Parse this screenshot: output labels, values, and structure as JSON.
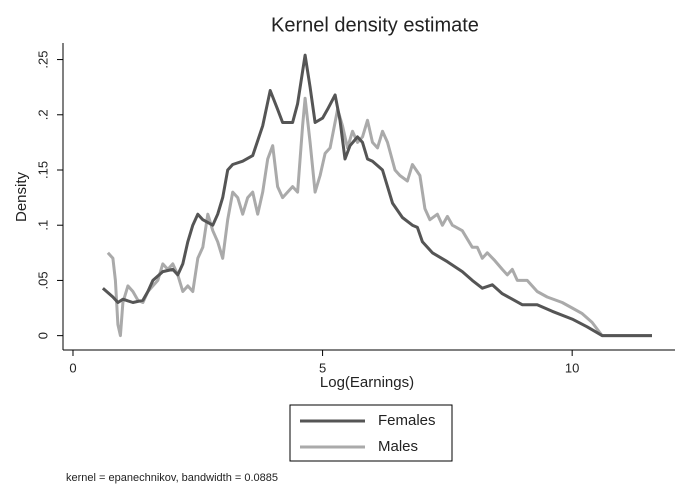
{
  "chart_data": {
    "type": "line",
    "title": "Kernel density estimate",
    "x_label": "Log(Earnings)",
    "y_label": "Density",
    "note": "kernel = epanechnikov, bandwidth = 0.0885",
    "xlim": [
      -0.2,
      12.06
    ],
    "ylim": [
      -0.013,
      0.265
    ],
    "xticks": [
      0,
      5,
      10
    ],
    "yticks": [
      {
        "value": 0,
        "label": "0"
      },
      {
        "value": 0.05,
        "label": ".05"
      },
      {
        "value": 0.1,
        "label": ".1"
      },
      {
        "value": 0.15,
        "label": ".15"
      },
      {
        "value": 0.2,
        "label": ".2"
      },
      {
        "value": 0.25,
        "label": ".25"
      }
    ],
    "grid": false,
    "legend": "bottom",
    "series": [
      {
        "name": "Females",
        "color": "#555555",
        "x": [
          0.6,
          0.8,
          0.9,
          1.0,
          1.2,
          1.4,
          1.5,
          1.6,
          1.8,
          2.0,
          2.1,
          2.2,
          2.3,
          2.4,
          2.5,
          2.6,
          2.8,
          2.9,
          3.0,
          3.1,
          3.2,
          3.4,
          3.6,
          3.8,
          3.95,
          4.1,
          4.2,
          4.4,
          4.5,
          4.65,
          4.75,
          4.85,
          5.0,
          5.1,
          5.25,
          5.35,
          5.45,
          5.55,
          5.7,
          5.8,
          5.9,
          6.0,
          6.2,
          6.4,
          6.6,
          6.8,
          6.9,
          7.0,
          7.2,
          7.5,
          7.8,
          8.0,
          8.2,
          8.4,
          8.6,
          8.8,
          9.0,
          9.3,
          9.6,
          10.0,
          10.3,
          10.6,
          11.0,
          11.6
        ],
        "values": [
          0.043,
          0.035,
          0.03,
          0.033,
          0.03,
          0.032,
          0.04,
          0.05,
          0.058,
          0.06,
          0.055,
          0.065,
          0.085,
          0.1,
          0.11,
          0.105,
          0.1,
          0.11,
          0.125,
          0.15,
          0.155,
          0.158,
          0.163,
          0.19,
          0.222,
          0.205,
          0.193,
          0.193,
          0.21,
          0.254,
          0.225,
          0.193,
          0.197,
          0.205,
          0.218,
          0.195,
          0.16,
          0.172,
          0.18,
          0.175,
          0.16,
          0.158,
          0.15,
          0.12,
          0.107,
          0.1,
          0.098,
          0.085,
          0.075,
          0.067,
          0.058,
          0.05,
          0.043,
          0.046,
          0.038,
          0.033,
          0.028,
          0.028,
          0.022,
          0.015,
          0.008,
          0.0,
          0.0,
          0.0
        ]
      },
      {
        "name": "Males",
        "color": "#aaaaaa",
        "x": [
          0.7,
          0.8,
          0.85,
          0.9,
          0.95,
          1.0,
          1.1,
          1.2,
          1.3,
          1.4,
          1.5,
          1.6,
          1.7,
          1.8,
          1.9,
          2.0,
          2.1,
          2.2,
          2.3,
          2.4,
          2.5,
          2.6,
          2.7,
          2.8,
          2.9,
          3.0,
          3.1,
          3.2,
          3.3,
          3.4,
          3.5,
          3.6,
          3.7,
          3.8,
          3.9,
          4.0,
          4.1,
          4.2,
          4.3,
          4.4,
          4.5,
          4.6,
          4.65,
          4.75,
          4.85,
          4.95,
          5.05,
          5.15,
          5.3,
          5.4,
          5.5,
          5.6,
          5.7,
          5.8,
          5.9,
          6.0,
          6.1,
          6.2,
          6.3,
          6.45,
          6.55,
          6.7,
          6.8,
          6.95,
          7.05,
          7.15,
          7.3,
          7.4,
          7.5,
          7.6,
          7.8,
          8.0,
          8.1,
          8.2,
          8.3,
          8.45,
          8.6,
          8.7,
          8.8,
          8.9,
          9.1,
          9.3,
          9.5,
          9.8,
          10.0,
          10.2,
          10.4,
          10.6,
          11.0,
          11.6
        ],
        "values": [
          0.075,
          0.07,
          0.05,
          0.01,
          0.0,
          0.03,
          0.045,
          0.04,
          0.032,
          0.03,
          0.04,
          0.045,
          0.05,
          0.065,
          0.06,
          0.065,
          0.055,
          0.04,
          0.045,
          0.04,
          0.07,
          0.08,
          0.11,
          0.095,
          0.085,
          0.07,
          0.105,
          0.13,
          0.125,
          0.11,
          0.125,
          0.13,
          0.11,
          0.13,
          0.16,
          0.172,
          0.135,
          0.125,
          0.13,
          0.135,
          0.13,
          0.19,
          0.215,
          0.175,
          0.13,
          0.145,
          0.165,
          0.17,
          0.205,
          0.19,
          0.17,
          0.185,
          0.175,
          0.18,
          0.195,
          0.175,
          0.17,
          0.185,
          0.175,
          0.15,
          0.145,
          0.14,
          0.155,
          0.145,
          0.115,
          0.105,
          0.11,
          0.1,
          0.108,
          0.1,
          0.095,
          0.08,
          0.08,
          0.07,
          0.075,
          0.068,
          0.06,
          0.055,
          0.06,
          0.05,
          0.05,
          0.04,
          0.035,
          0.03,
          0.025,
          0.02,
          0.012,
          0.0,
          0.0,
          0.0
        ]
      }
    ]
  }
}
